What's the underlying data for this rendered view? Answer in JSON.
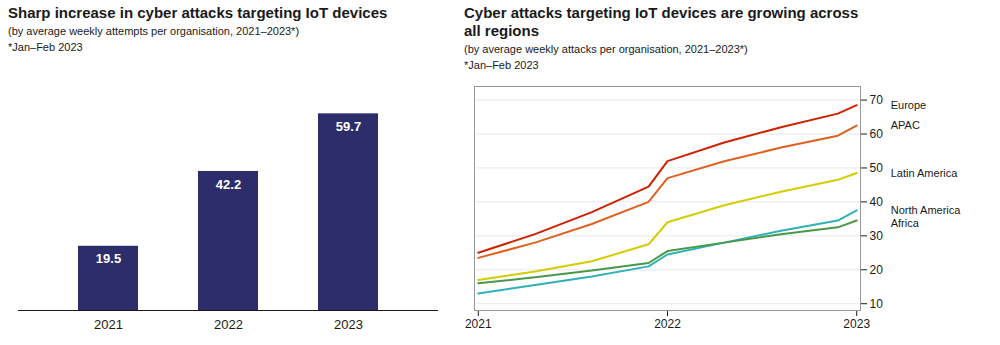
{
  "chart_data": [
    {
      "type": "bar",
      "title": "Sharp increase in cyber attacks targeting IoT devices",
      "subtitle": "(by average weekly attempts per organisation, 2021–2023*)",
      "annotations": [
        "*Jan–Feb 2023"
      ],
      "categories": [
        "2021",
        "2022",
        "2023"
      ],
      "values": [
        19.5,
        42.2,
        59.7
      ],
      "color": "#2d2d6b",
      "ylim": [
        0,
        68
      ],
      "data_labels": true,
      "tick_labels": "x",
      "grid": false
    },
    {
      "type": "line",
      "title": "Cyber attacks targeting IoT devices are growing across\nall regions",
      "subtitle": "(by average weekly attacks per organisation, 2021–2023*)",
      "annotations": [
        "*Jan–Feb 2023"
      ],
      "x": [
        2021,
        2021.3,
        2021.6,
        2021.9,
        2022,
        2022.3,
        2022.6,
        2022.9,
        2023
      ],
      "xlim": [
        2020.98,
        2023.02
      ],
      "xticks": [
        2021,
        2022,
        2023
      ],
      "ylim": [
        8,
        74
      ],
      "yticks": [
        10,
        20,
        30,
        40,
        50,
        60,
        70
      ],
      "grid": true,
      "series": [
        {
          "name": "Europe",
          "color": "#cc2200",
          "values": [
            25.0,
            30.5,
            37.0,
            44.5,
            52.0,
            57.5,
            62.0,
            66.0,
            68.5
          ]
        },
        {
          "name": "APAC",
          "color": "#e06020",
          "values": [
            23.5,
            28.0,
            33.5,
            40.0,
            47.0,
            52.0,
            56.0,
            59.5,
            62.5
          ]
        },
        {
          "name": "Latin America",
          "color": "#d4cc00",
          "values": [
            17.0,
            19.5,
            22.5,
            27.5,
            34.0,
            39.0,
            43.0,
            46.5,
            48.5
          ]
        },
        {
          "name": "North America",
          "color": "#30b0b8",
          "values": [
            13.0,
            15.5,
            18.0,
            21.0,
            24.5,
            28.0,
            31.5,
            34.5,
            37.5
          ]
        },
        {
          "name": "Africa",
          "color": "#48984a",
          "values": [
            16.0,
            17.8,
            19.8,
            22.0,
            25.5,
            28.0,
            30.5,
            32.5,
            34.5
          ]
        }
      ]
    }
  ]
}
